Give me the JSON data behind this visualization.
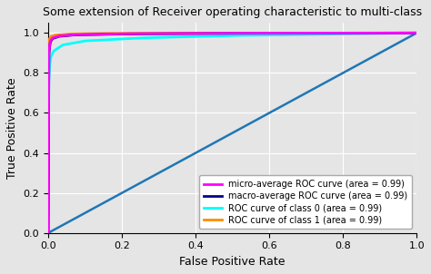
{
  "title": "Some extension of Receiver operating characteristic to multi-class",
  "xlabel": "False Positive Rate",
  "ylabel": "True Positive Rate",
  "xlim": [
    0.0,
    1.0
  ],
  "ylim": [
    0.0,
    1.05
  ],
  "background_color": "#e5e5e5",
  "plot_bg_color": "#e5e5e5",
  "diagonal_color": "#1f77b4",
  "curves": [
    {
      "label": "micro-average ROC curve (area = 0.99)",
      "color": "#ff00ff",
      "linewidth": 2,
      "zorder": 6
    },
    {
      "label": "macro-average ROC curve (area = 0.99)",
      "color": "#00008b",
      "linewidth": 2,
      "zorder": 5
    },
    {
      "label": "ROC curve of class 0 (area = 0.99)",
      "color": "#00ffff",
      "linewidth": 2,
      "zorder": 4
    },
    {
      "label": "ROC curve of class 1 (area = 0.99)",
      "color": "#ff8c00",
      "linewidth": 2,
      "zorder": 3
    }
  ],
  "title_fontsize": 9,
  "legend_fontsize": 7,
  "tick_fontsize": 8,
  "label_fontsize": 9
}
